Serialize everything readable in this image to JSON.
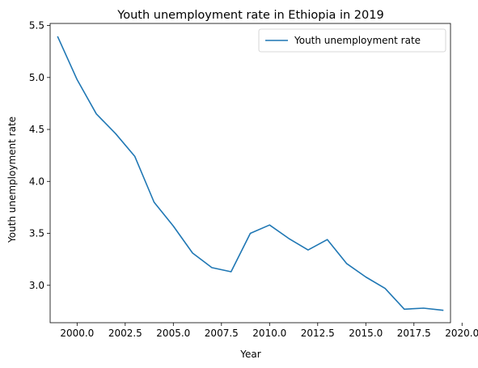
{
  "chart_data": {
    "type": "line",
    "title": "Youth unemployment rate in Ethiopia in 2019",
    "xlabel": "Year",
    "ylabel": "Youth unemployment rate",
    "xlim": [
      1998.6,
      2019.4
    ],
    "ylim": [
      2.64,
      5.52
    ],
    "x_ticks": [
      2000.0,
      2002.5,
      2005.0,
      2007.5,
      2010.0,
      2012.5,
      2015.0,
      2017.5,
      2020.0
    ],
    "x_tick_labels": [
      "2000.0",
      "2002.5",
      "2005.0",
      "2007.5",
      "2010.0",
      "2012.5",
      "2015.0",
      "2017.5",
      "2020.0"
    ],
    "y_ticks": [
      3.0,
      3.5,
      4.0,
      4.5,
      5.0,
      5.5
    ],
    "y_tick_labels": [
      "3.0",
      "3.5",
      "4.0",
      "4.5",
      "5.0",
      "5.5"
    ],
    "grid": false,
    "legend_position": "upper-right",
    "series": [
      {
        "name": "Youth unemployment rate",
        "color": "#1f77b4",
        "x": [
          1999,
          2000,
          2001,
          2002,
          2003,
          2004,
          2005,
          2006,
          2007,
          2008,
          2009,
          2010,
          2011,
          2012,
          2013,
          2014,
          2015,
          2016,
          2017,
          2018,
          2019
        ],
        "values": [
          5.39,
          4.98,
          4.65,
          4.46,
          4.24,
          3.8,
          3.57,
          3.31,
          3.17,
          3.13,
          3.5,
          3.58,
          3.45,
          3.34,
          3.44,
          3.21,
          3.08,
          2.97,
          2.77,
          2.78,
          2.76
        ]
      }
    ]
  }
}
